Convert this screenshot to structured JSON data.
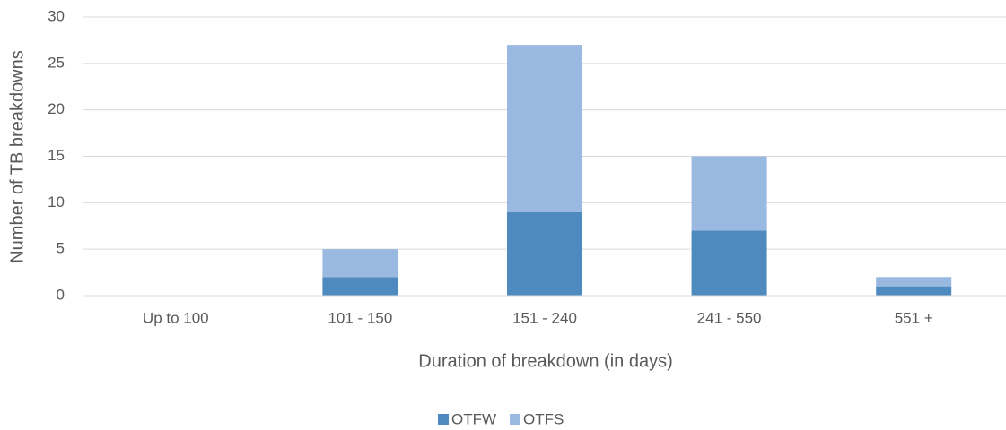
{
  "chart_data": {
    "type": "stacked_bar",
    "x_label": "Duration of breakdown (in days)",
    "y_label": "Number of TB breakdowns",
    "categories": [
      "Up to 100",
      "101 - 150",
      "151 - 240",
      "241 - 550",
      "551 +"
    ],
    "series": [
      {
        "name": "OTFW",
        "color": "#4e8abe",
        "values": [
          0,
          2,
          9,
          7,
          1
        ]
      },
      {
        "name": "OTFS",
        "color": "#9ab9e0",
        "values": [
          0,
          3,
          18,
          8,
          1
        ]
      }
    ],
    "ylim": [
      0,
      30
    ],
    "yticks": [
      0,
      5,
      10,
      15,
      20,
      25,
      30
    ],
    "grid": true,
    "legend": "bottom"
  }
}
